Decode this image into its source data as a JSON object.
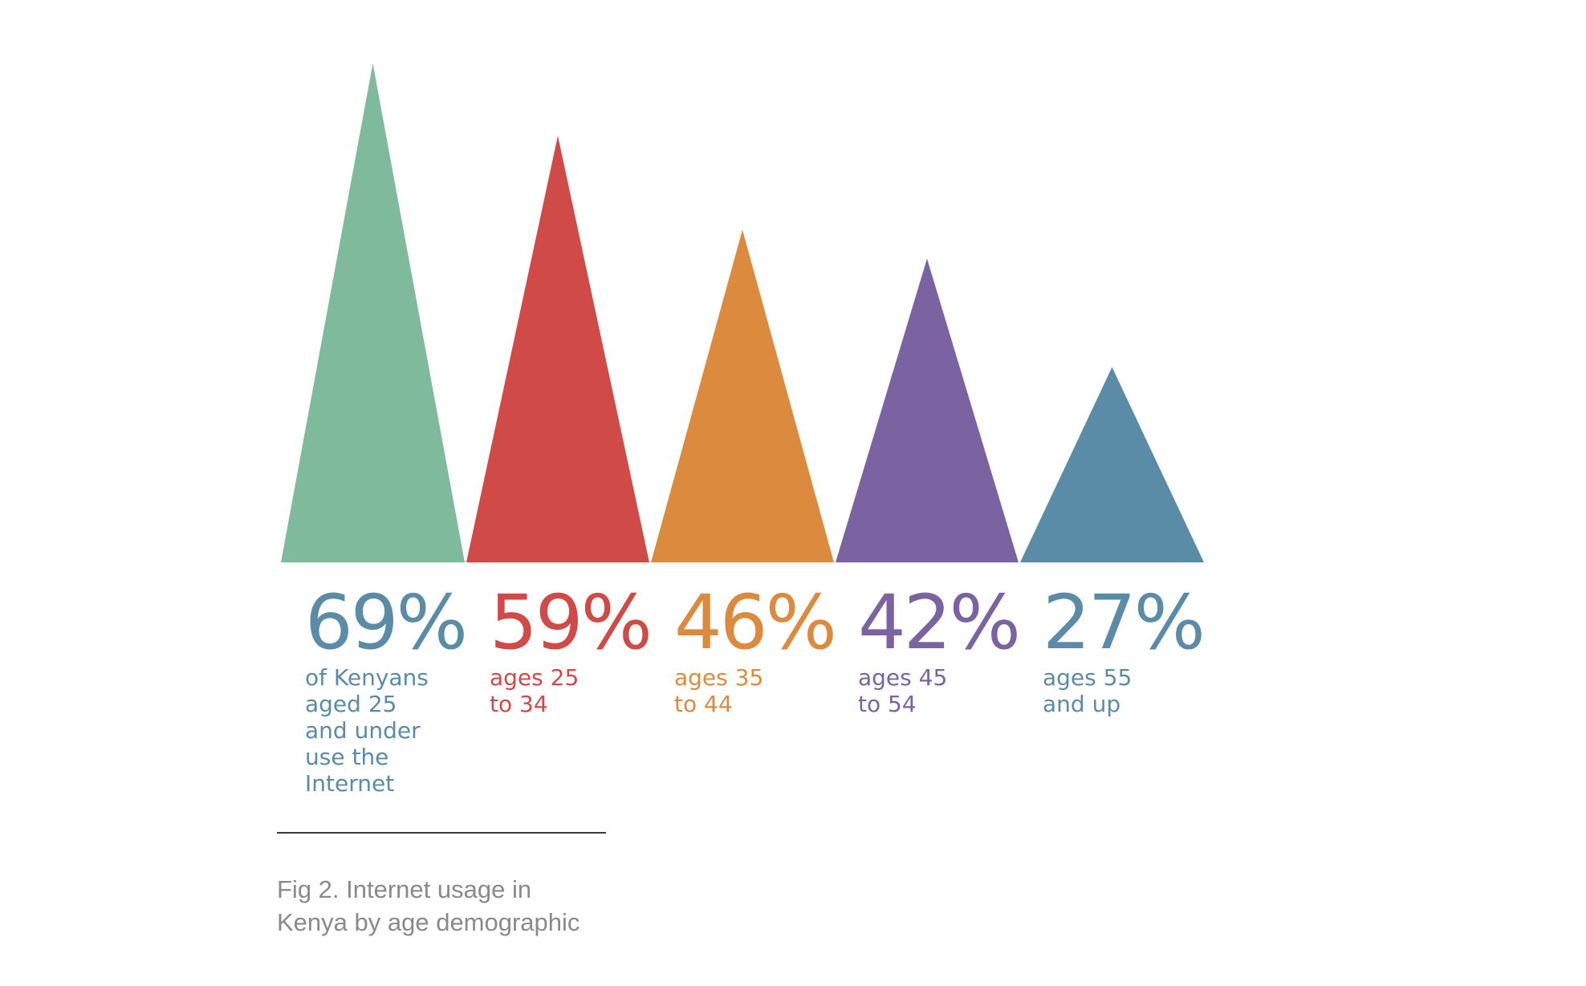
{
  "chart_data": {
    "type": "bar",
    "title": "",
    "xlabel": "",
    "ylabel": "",
    "ylim": [
      0,
      69
    ],
    "grid": false,
    "legend": "none",
    "categories": [
      "of Kenyans\naged 25\nand under\nuse the\nInternet",
      "ages 25\nto 34",
      "ages 35\nto 44",
      "ages 45\nto 54",
      "ages 55\nand up"
    ],
    "values": [
      69,
      59,
      46,
      42,
      27
    ],
    "value_labels": [
      "69%",
      "59%",
      "46%",
      "42%",
      "27%"
    ],
    "colors": [
      "#7fba9c",
      "#d04a48",
      "#dc8a3e",
      "#7b63a1",
      "#5a8ca7"
    ],
    "label_colors": [
      "#5a8ca7",
      "#d04a48",
      "#dc8a3e",
      "#7b63a1",
      "#5a8ca7"
    ]
  },
  "caption": "Fig 2. Internet usage in\nKenya by age demographic"
}
